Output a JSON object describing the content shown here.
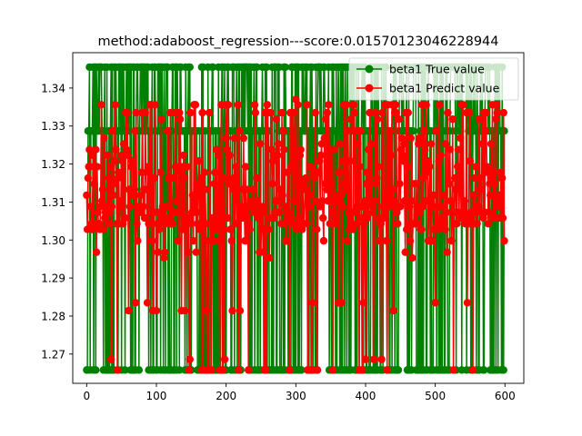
{
  "chart_data": {
    "type": "line",
    "title": "method:adaboost_regression---score:0.01570123046228944",
    "xlabel": "",
    "ylabel": "",
    "xlim": [
      -20,
      627
    ],
    "ylim": [
      1.2623,
      1.3493
    ],
    "x_ticks": [
      0,
      100,
      200,
      300,
      400,
      500,
      600
    ],
    "x_tick_labels": [
      "0",
      "100",
      "200",
      "300",
      "400",
      "500",
      "600"
    ],
    "y_ticks": [
      1.27,
      1.28,
      1.29,
      1.3,
      1.31,
      1.32,
      1.33,
      1.34
    ],
    "y_tick_labels": [
      "1.27",
      "1.28",
      "1.29",
      "1.30",
      "1.31",
      "1.32",
      "1.33",
      "1.34"
    ],
    "grid": false,
    "legend_position": "top-right",
    "n_points": 600,
    "series": [
      {
        "name": "beta1 True value",
        "color": "#008000",
        "marker": "circle",
        "levels": [
          1.2658,
          1.3287,
          1.3455
        ],
        "level_weights": [
          0.36,
          0.3,
          0.34
        ]
      },
      {
        "name": "beta1 Predict value",
        "color": "#ff0000",
        "marker": "circle",
        "levels": [
          1.2658,
          1.2686,
          1.2814,
          1.2835,
          1.2953,
          1.2968,
          1.2998,
          1.3028,
          1.3043,
          1.3058,
          1.3073,
          1.3088,
          1.3103,
          1.3118,
          1.3133,
          1.3148,
          1.3163,
          1.3178,
          1.3193,
          1.3208,
          1.3223,
          1.3238,
          1.3253,
          1.3268,
          1.3287,
          1.3318,
          1.3335,
          1.3356,
          1.337
        ],
        "level_weights": [
          0.06,
          0.01,
          0.01,
          0.01,
          0.015,
          0.015,
          0.03,
          0.06,
          0.08,
          0.07,
          0.07,
          0.06,
          0.05,
          0.05,
          0.04,
          0.04,
          0.04,
          0.03,
          0.03,
          0.02,
          0.02,
          0.02,
          0.02,
          0.02,
          0.02,
          0.03,
          0.06,
          0.06,
          0.005
        ]
      }
    ]
  }
}
